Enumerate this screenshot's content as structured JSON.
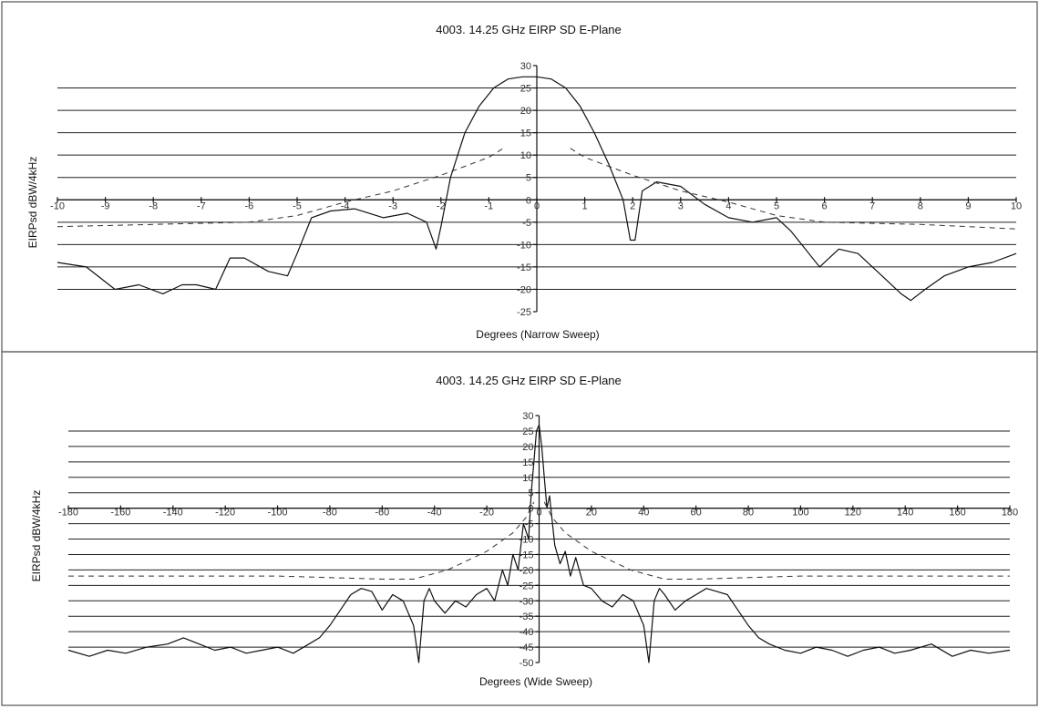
{
  "chart_data": [
    {
      "type": "line",
      "title": "4003. 14.25 GHz EIRP SD E-Plane",
      "xlabel": "Degrees (Narrow Sweep)",
      "ylabel": "EIRPsd dBW/4kHz",
      "xlim": [
        -10,
        10
      ],
      "ylim": [
        -25,
        30
      ],
      "x_ticks": [
        -10,
        -9,
        -8,
        -7,
        -6,
        -5,
        -4,
        -3,
        -2,
        -1,
        0,
        1,
        2,
        3,
        4,
        5,
        6,
        7,
        8,
        9,
        10
      ],
      "y_ticks": [
        30,
        25,
        20,
        15,
        10,
        5,
        0,
        -5,
        -10,
        -15,
        -20,
        -25
      ],
      "grid": true,
      "series": [
        {
          "style": "solid",
          "x": [
            -10,
            -9.4,
            -8.8,
            -8.3,
            -7.8,
            -7.4,
            -7.1,
            -6.7,
            -6.4,
            -6.1,
            -5.6,
            -5.2,
            -5.0,
            -4.7,
            -4.3,
            -3.8,
            -3.2,
            -2.7,
            -2.3,
            -2.1,
            -2.0,
            -1.8,
            -1.5,
            -1.2,
            -0.9,
            -0.6,
            -0.3,
            0,
            0.3,
            0.6,
            0.9,
            1.2,
            1.5,
            1.8,
            1.95,
            2.05,
            2.2,
            2.5,
            3.0,
            3.5,
            4.0,
            4.5,
            5.0,
            5.3,
            5.6,
            5.9,
            6.3,
            6.7,
            7.2,
            7.6,
            7.8,
            8.1,
            8.5,
            9.0,
            9.5,
            10
          ],
          "y": [
            -14,
            -15,
            -20,
            -19,
            -21,
            -19,
            -19,
            -20,
            -13,
            -13,
            -16,
            -17,
            -12,
            -4,
            -2.5,
            -2,
            -4,
            -3,
            -5,
            -11,
            -6,
            5,
            15,
            21,
            25,
            27,
            27.5,
            27.5,
            27,
            25,
            21,
            15,
            8,
            0,
            -9,
            -9,
            2,
            4,
            3,
            -1,
            -4,
            -5,
            -4,
            -7,
            -11,
            -15,
            -11,
            -12,
            -17,
            -21,
            -22.5,
            -20,
            -17,
            -15,
            -14,
            -12
          ]
        },
        {
          "style": "dashed",
          "x": [
            -10,
            -8,
            -6,
            -5,
            -4,
            -3,
            -2,
            -1.5,
            -1,
            -0.7
          ],
          "y": [
            -6,
            -5.5,
            -5,
            -3.5,
            -0.5,
            2,
            5.5,
            7.5,
            9.5,
            11.5
          ]
        },
        {
          "style": "dashed",
          "x": [
            0.7,
            1,
            1.5,
            2,
            3,
            4,
            5,
            6,
            8,
            9,
            10
          ],
          "y": [
            11.5,
            9.5,
            7.5,
            5.5,
            2,
            -0.5,
            -3.5,
            -5,
            -5.5,
            -6,
            -6.5
          ]
        }
      ]
    },
    {
      "type": "line",
      "title": "4003. 14.25 GHz EIRP SD E-Plane",
      "xlabel": "Degrees (Wide Sweep)",
      "ylabel": "EIRPsd dBW/4kHz",
      "xlim": [
        -180,
        180
      ],
      "ylim": [
        -50,
        30
      ],
      "x_ticks": [
        -180,
        -160,
        -140,
        -120,
        -100,
        -80,
        -60,
        -40,
        -20,
        0,
        20,
        40,
        60,
        80,
        100,
        120,
        140,
        160,
        180
      ],
      "y_ticks": [
        30,
        25,
        20,
        15,
        10,
        5,
        0,
        -5,
        -10,
        -15,
        -20,
        -25,
        -30,
        -35,
        -40,
        -45,
        -50
      ],
      "grid": true,
      "series": [
        {
          "style": "solid",
          "x": [
            -180,
            -172,
            -165,
            -158,
            -150,
            -142,
            -136,
            -130,
            -124,
            -118,
            -112,
            -106,
            -100,
            -94,
            -88,
            -84,
            -80,
            -76,
            -72,
            -68,
            -64,
            -60,
            -56,
            -52,
            -48,
            -46,
            -44,
            -42,
            -40,
            -36,
            -32,
            -28,
            -24,
            -20,
            -17,
            -14,
            -12,
            -10,
            -8,
            -6,
            -4,
            -3,
            -2,
            -1,
            0,
            1,
            2,
            3,
            4,
            6,
            8,
            10,
            12,
            14,
            17,
            20,
            24,
            28,
            32,
            36,
            40,
            42,
            44,
            46,
            48,
            52,
            56,
            60,
            64,
            68,
            72,
            76,
            80,
            84,
            88,
            94,
            100,
            106,
            112,
            118,
            124,
            130,
            136,
            142,
            150,
            158,
            165,
            172,
            180
          ],
          "y": [
            -46,
            -48,
            -46,
            -47,
            -45,
            -44,
            -42,
            -44,
            -46,
            -45,
            -47,
            -46,
            -45,
            -47,
            -44,
            -42,
            -38,
            -33,
            -28,
            -26,
            -27,
            -33,
            -28,
            -30,
            -38,
            -50,
            -30,
            -26,
            -30,
            -34,
            -30,
            -32,
            -28,
            -26,
            -30,
            -20,
            -25,
            -15,
            -20,
            -5,
            -10,
            5,
            15,
            25,
            27,
            20,
            10,
            0,
            4,
            -12,
            -18,
            -14,
            -22,
            -16,
            -25,
            -26,
            -30,
            -32,
            -28,
            -30,
            -38,
            -50,
            -30,
            -26,
            -28,
            -33,
            -30,
            -28,
            -26,
            -27,
            -28,
            -33,
            -38,
            -42,
            -44,
            -46,
            -47,
            -45,
            -46,
            -48,
            -46,
            -45,
            -47,
            -46,
            -44,
            -48,
            -46,
            -47,
            -46
          ]
        },
        {
          "style": "dashed",
          "x": [
            -180,
            -100,
            -60,
            -48,
            -35,
            -20,
            -10,
            -5,
            -2
          ],
          "y": [
            -22,
            -22,
            -23,
            -23,
            -20,
            -14,
            -8,
            -3,
            2
          ]
        },
        {
          "style": "dashed",
          "x": [
            2,
            5,
            10,
            20,
            35,
            48,
            60,
            100,
            180
          ],
          "y": [
            2,
            -3,
            -8,
            -14,
            -20,
            -23,
            -23,
            -22,
            -22
          ]
        }
      ]
    }
  ]
}
